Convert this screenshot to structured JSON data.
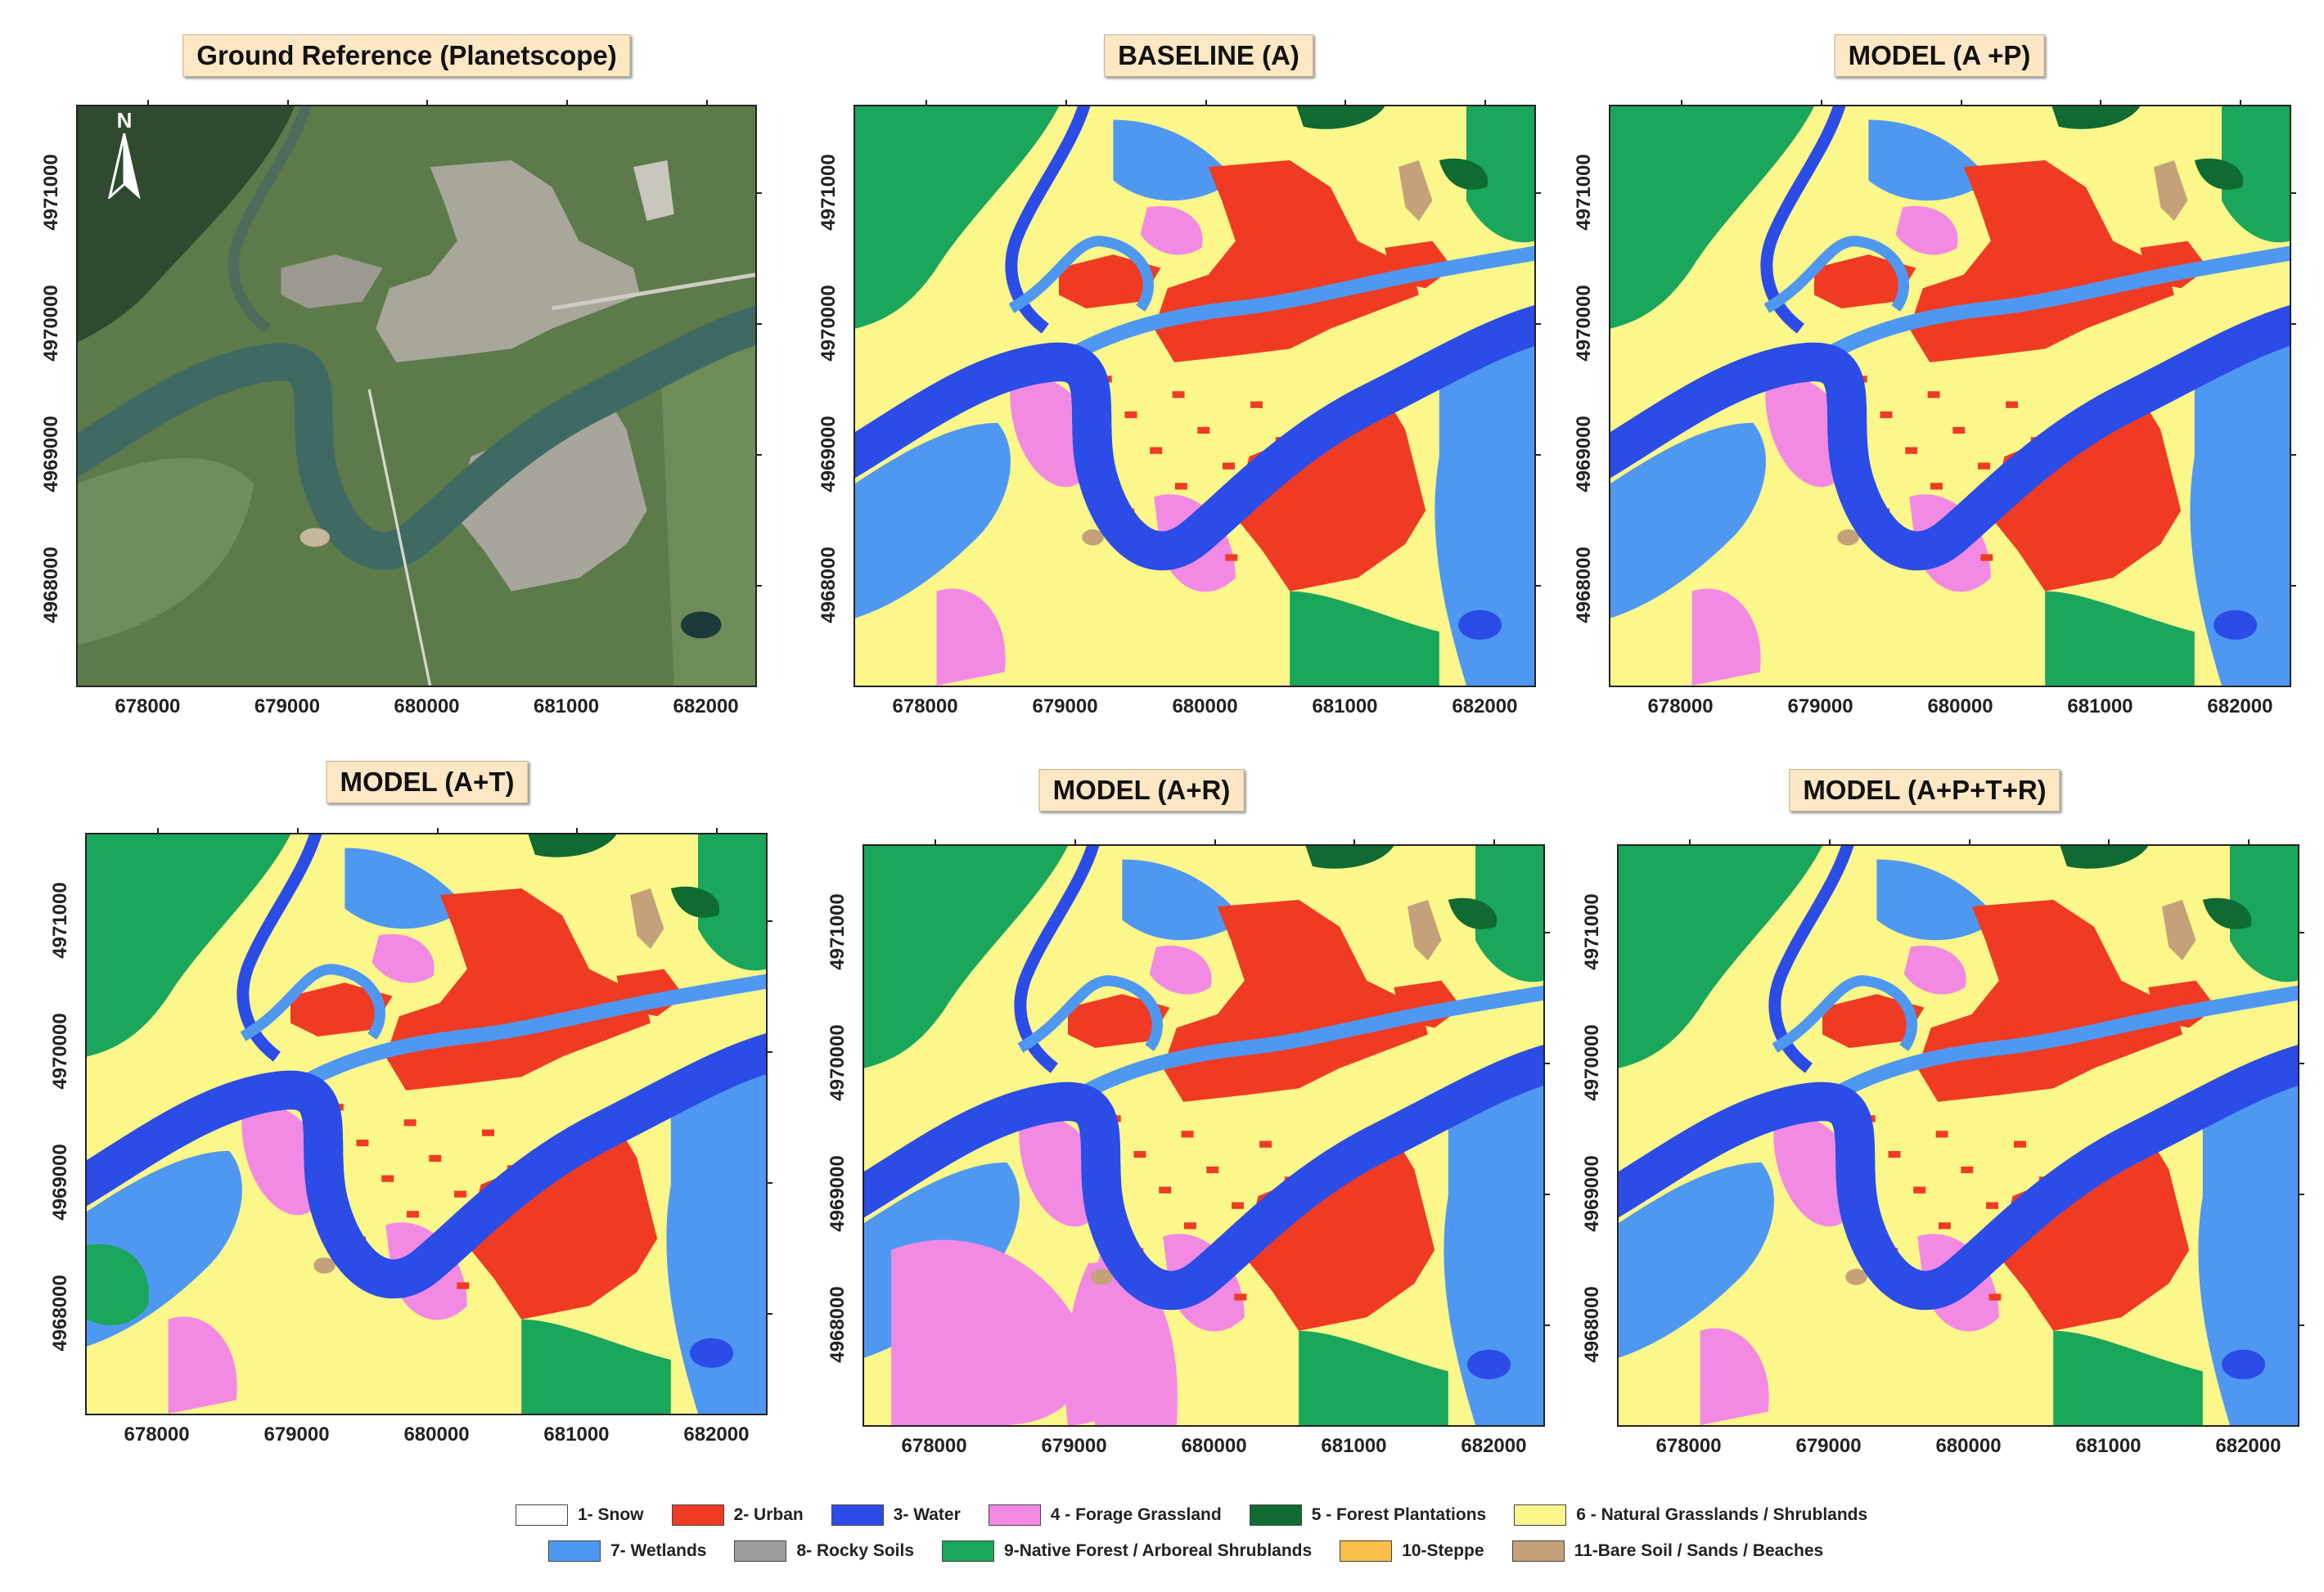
{
  "panels": [
    {
      "id": "ground-reference",
      "title": "Ground Reference (Planetscope)",
      "kind": "satellite"
    },
    {
      "id": "baseline-a",
      "title": "BASELINE  (A)",
      "kind": "classified",
      "variant": 0
    },
    {
      "id": "model-a-p",
      "title": "MODEL (A +P)",
      "kind": "classified",
      "variant": 1
    },
    {
      "id": "model-a-t",
      "title": "MODEL (A+T)",
      "kind": "classified",
      "variant": 2
    },
    {
      "id": "model-a-r",
      "title": "MODEL (A+R)",
      "kind": "classified",
      "variant": 3
    },
    {
      "id": "model-a-p-t-r",
      "title": "MODEL (A+P+T+R)",
      "kind": "classified",
      "variant": 4
    }
  ],
  "axes": {
    "x_ticks": [
      "678000",
      "679000",
      "680000",
      "681000",
      "682000"
    ],
    "y_ticks": [
      "4971000",
      "4970000",
      "4969000",
      "4968000"
    ]
  },
  "north_arrow": {
    "label": "N",
    "icon": "north-arrow-icon"
  },
  "legend": [
    [
      {
        "label": "1- Snow",
        "color": "#ffffff"
      },
      {
        "label": "2- Urban",
        "color": "#ef3b24"
      },
      {
        "label": "3- Water",
        "color": "#2b4ce6"
      },
      {
        "label": "4 - Forage Grassland",
        "color": "#f28ae3"
      },
      {
        "label": "5 - Forest Plantations",
        "color": "#0f6b31"
      },
      {
        "label": "6 - Natural Grasslands / Shrublands",
        "color": "#fbf78b"
      }
    ],
    [
      {
        "label": "7- Wetlands",
        "color": "#4f98f2"
      },
      {
        "label": "8- Rocky Soils",
        "color": "#9e9e9e"
      },
      {
        "label": "9-Native Forest / Arboreal Shrublands",
        "color": "#1aa65b"
      },
      {
        "label": "10-Steppe",
        "color": "#f9bf4a"
      },
      {
        "label": "11-Bare Soil / Sands / Beaches",
        "color": "#c4a17b"
      }
    ]
  ],
  "colors": {
    "urban": "#ef3b24",
    "water": "#2b4ce6",
    "forage": "#f28ae3",
    "plantation": "#0f6b31",
    "grassland": "#fbf78b",
    "wetland": "#4f98f2",
    "rocky": "#9e9e9e",
    "native_forest": "#1aa65b",
    "steppe": "#f9bf4a",
    "bare": "#c4a17b"
  }
}
